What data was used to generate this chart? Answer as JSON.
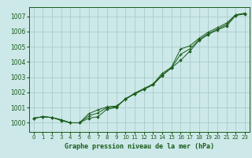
{
  "title": "Graphe pression niveau de la mer (hPa)",
  "bg_color": "#cce8e8",
  "grid_color": "#aacccc",
  "line_color": "#1a5c1a",
  "marker_color": "#1a5c1a",
  "xlim": [
    -0.5,
    23.5
  ],
  "ylim": [
    999.4,
    1007.6
  ],
  "yticks": [
    1000,
    1001,
    1002,
    1003,
    1004,
    1005,
    1006,
    1007
  ],
  "xticks": [
    0,
    1,
    2,
    3,
    4,
    5,
    6,
    7,
    8,
    9,
    10,
    11,
    12,
    13,
    14,
    15,
    16,
    17,
    18,
    19,
    20,
    21,
    22,
    23
  ],
  "series1_x": [
    0,
    1,
    2,
    3,
    4,
    5,
    6,
    7,
    8,
    9,
    10,
    11,
    12,
    13,
    14,
    15,
    16,
    17,
    18,
    19,
    20,
    21,
    22,
    23
  ],
  "series1_y": [
    1000.3,
    1000.4,
    1000.35,
    1000.15,
    1000.0,
    1000.0,
    1000.3,
    1000.4,
    1000.9,
    1001.0,
    1001.6,
    1001.9,
    1002.2,
    1002.5,
    1003.1,
    1003.6,
    1004.1,
    1004.7,
    1005.4,
    1005.8,
    1006.1,
    1006.35,
    1007.05,
    1007.15
  ],
  "series2_x": [
    0,
    1,
    2,
    3,
    4,
    5,
    6,
    7,
    8,
    9,
    10,
    11,
    12,
    13,
    14,
    15,
    16,
    17,
    18,
    19,
    20,
    21,
    22,
    23
  ],
  "series2_y": [
    1000.3,
    1000.4,
    1000.35,
    1000.2,
    1000.0,
    1000.0,
    1000.6,
    1000.85,
    1001.05,
    1001.1,
    1001.55,
    1001.95,
    1002.25,
    1002.55,
    1003.25,
    1003.65,
    1004.85,
    1005.05,
    1005.55,
    1005.95,
    1006.25,
    1006.55,
    1007.1,
    1007.2
  ],
  "series3_x": [
    0,
    1,
    2,
    3,
    4,
    5,
    6,
    7,
    8,
    9,
    10,
    11,
    12,
    13,
    14,
    15,
    16,
    17,
    18,
    19,
    20,
    21,
    22,
    23
  ],
  "series3_y": [
    1000.3,
    1000.4,
    1000.35,
    1000.2,
    1000.0,
    1000.0,
    1000.45,
    1000.65,
    1001.0,
    1001.05,
    1001.55,
    1001.9,
    1002.2,
    1002.5,
    1003.15,
    1003.6,
    1004.5,
    1004.85,
    1005.45,
    1005.85,
    1006.15,
    1006.45,
    1007.08,
    1007.18
  ]
}
